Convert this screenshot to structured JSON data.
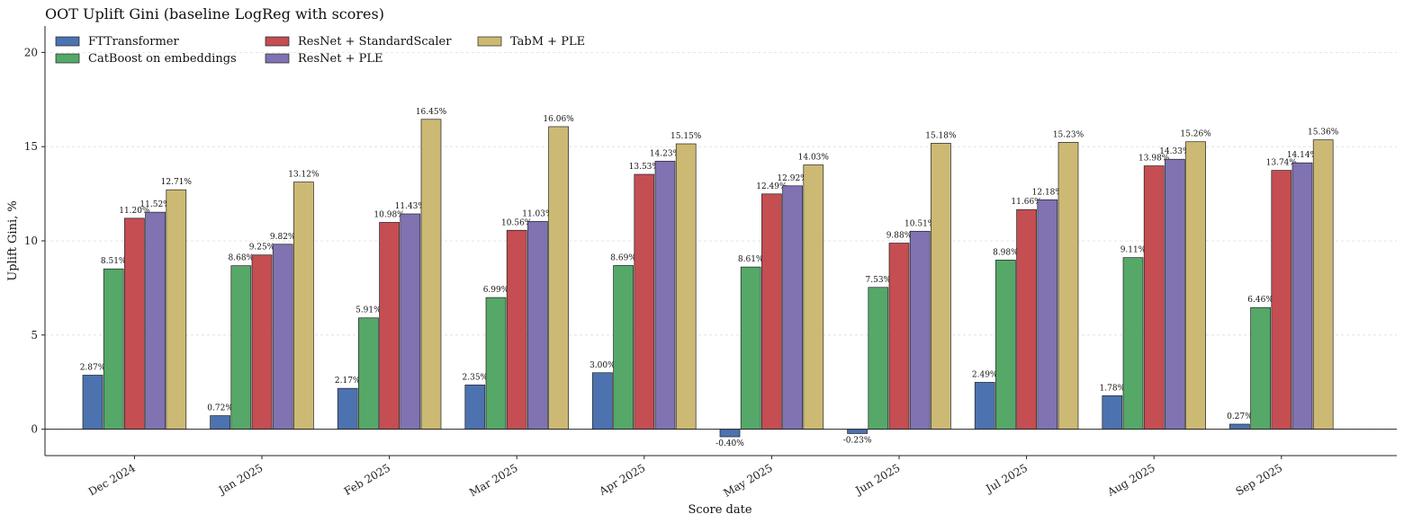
{
  "chart_data": {
    "type": "bar",
    "title": "OOT Uplift Gini (baseline LogReg with scores)",
    "xlabel": "Score date",
    "ylabel": "Uplift Gini, %",
    "ylim": [
      -1.4,
      21.4
    ],
    "yticks": [
      0,
      5,
      10,
      15,
      20
    ],
    "grid": "horizontal dashed",
    "legend_position": "top-left",
    "categories": [
      "Dec 2024",
      "Jan 2025",
      "Feb 2025",
      "Mar 2025",
      "Apr 2025",
      "May 2025",
      "Jun 2025",
      "Jul 2025",
      "Aug 2025",
      "Sep 2025"
    ],
    "series": [
      {
        "name": "FTTransformer",
        "color": "#4c72b0",
        "values": [
          2.87,
          0.72,
          2.17,
          2.35,
          3.0,
          -0.4,
          -0.23,
          2.49,
          1.78,
          0.27
        ],
        "labels": [
          "2.87%",
          "0.72%",
          "2.17%",
          "2.35%",
          "3.00%",
          "-0.40%",
          "-0.23%",
          "2.49%",
          "1.78%",
          "0.27%"
        ]
      },
      {
        "name": "CatBoost on embeddings",
        "color": "#55a868",
        "values": [
          8.51,
          8.68,
          5.91,
          6.99,
          8.69,
          8.61,
          7.53,
          8.98,
          9.11,
          6.46
        ],
        "labels": [
          "8.51%",
          "8.68%",
          "5.91%",
          "6.99%",
          "8.69%",
          "8.61%",
          "7.53%",
          "8.98%",
          "9.11%",
          "6.46%"
        ]
      },
      {
        "name": "ResNet + StandardScaler",
        "color": "#c44e52",
        "values": [
          11.2,
          9.25,
          10.98,
          10.56,
          13.53,
          12.49,
          9.88,
          11.66,
          13.98,
          13.74
        ],
        "labels": [
          "11.20%",
          "9.25%",
          "10.98%",
          "10.56%",
          "13.53%",
          "12.49%",
          "9.88%",
          "11.66%",
          "13.98%",
          "13.74%"
        ]
      },
      {
        "name": "ResNet + PLE",
        "color": "#8172b2",
        "values": [
          11.52,
          9.82,
          11.43,
          11.03,
          14.23,
          12.92,
          10.51,
          12.18,
          14.33,
          14.14
        ],
        "labels": [
          "11.52%",
          "9.82%",
          "11.43%",
          "11.03%",
          "14.23%",
          "12.92%",
          "10.51%",
          "12.18%",
          "14.33%",
          "14.14%"
        ]
      },
      {
        "name": "TabM + PLE",
        "color": "#ccb974",
        "values": [
          12.71,
          13.12,
          16.45,
          16.06,
          15.15,
          14.03,
          15.18,
          15.23,
          15.26,
          15.36
        ],
        "labels": [
          "12.71%",
          "13.12%",
          "16.45%",
          "16.06%",
          "15.15%",
          "14.03%",
          "15.18%",
          "15.23%",
          "15.26%",
          "15.36%"
        ]
      }
    ]
  }
}
